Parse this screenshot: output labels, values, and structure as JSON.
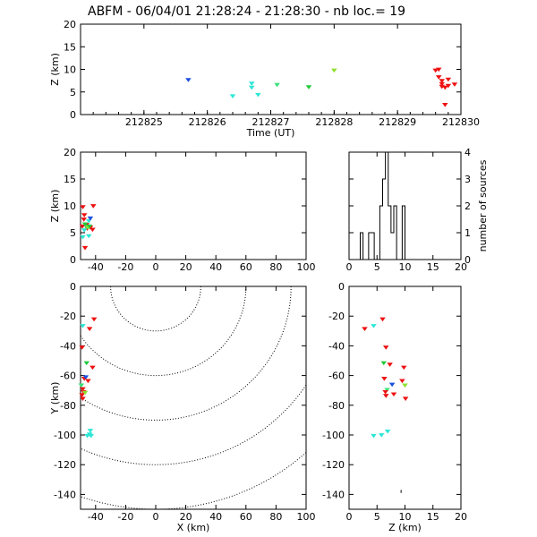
{
  "title": "ABFM - 06/04/01 21:28:24 - 21:28:30 - nb loc.=       19",
  "chart_data": [
    {
      "id": "time-height",
      "type": "scatter",
      "xlabel": "Time (UT)",
      "ylabel": "Z (km)",
      "xlim": [
        212824,
        212830
      ],
      "ylim": [
        0,
        20
      ],
      "xticks": [
        "212825",
        "212826",
        "212827",
        "212828",
        "212829",
        "212830"
      ],
      "yticks": [
        "0",
        "5",
        "10",
        "15",
        "20"
      ],
      "points": [
        {
          "x": 212825.7,
          "y": 7.7,
          "color": "#1b4fe0"
        },
        {
          "x": 212826.4,
          "y": 4.1,
          "color": "#2ee6d6"
        },
        {
          "x": 212826.7,
          "y": 6.9,
          "color": "#2ee6d6"
        },
        {
          "x": 212826.7,
          "y": 6.0,
          "color": "#2ee6d6"
        },
        {
          "x": 212826.8,
          "y": 4.4,
          "color": "#2ee6d6"
        },
        {
          "x": 212827.1,
          "y": 6.6,
          "color": "#3ce07a"
        },
        {
          "x": 212827.6,
          "y": 6.1,
          "color": "#22c93a"
        },
        {
          "x": 212828.0,
          "y": 9.8,
          "color": "#8fe030"
        },
        {
          "x": 212829.6,
          "y": 9.8,
          "color": "#ee1111"
        },
        {
          "x": 212829.65,
          "y": 10.0,
          "color": "#ee1111"
        },
        {
          "x": 212829.65,
          "y": 8.3,
          "color": "#ee1111"
        },
        {
          "x": 212829.7,
          "y": 7.5,
          "color": "#ee1111"
        },
        {
          "x": 212829.7,
          "y": 6.8,
          "color": "#ee1111"
        },
        {
          "x": 212829.7,
          "y": 6.2,
          "color": "#ee1111"
        },
        {
          "x": 212829.75,
          "y": 6.0,
          "color": "#ee1111"
        },
        {
          "x": 212829.8,
          "y": 7.8,
          "color": "#ee1111"
        },
        {
          "x": 212829.8,
          "y": 6.4,
          "color": "#ee1111"
        },
        {
          "x": 212829.9,
          "y": 6.7,
          "color": "#ee1111"
        },
        {
          "x": 212829.75,
          "y": 2.2,
          "color": "#ee1111"
        }
      ]
    },
    {
      "id": "x-z",
      "type": "scatter",
      "xlabel": "",
      "ylabel": "Z (km)",
      "xlim": [
        -50,
        100
      ],
      "ylim": [
        0,
        20
      ],
      "xticks": [
        "-40",
        "-20",
        "0",
        "20",
        "40",
        "60",
        "80",
        "100"
      ],
      "yticks": [
        "0",
        "5",
        "10",
        "15",
        "20"
      ],
      "points": [
        {
          "x": -48.5,
          "y": 9.8,
          "color": "#ee1111"
        },
        {
          "x": -47.5,
          "y": 8.3,
          "color": "#ee1111"
        },
        {
          "x": -47.8,
          "y": 7.5,
          "color": "#ee1111"
        },
        {
          "x": -48.8,
          "y": 6.2,
          "color": "#ee1111"
        },
        {
          "x": -46.0,
          "y": 6.5,
          "color": "#ee1111"
        },
        {
          "x": -45.5,
          "y": 5.8,
          "color": "#ee1111"
        },
        {
          "x": -43.5,
          "y": 6.0,
          "color": "#ee1111"
        },
        {
          "x": -42.0,
          "y": 5.6,
          "color": "#ee1111"
        },
        {
          "x": -47.0,
          "y": 2.2,
          "color": "#ee1111"
        },
        {
          "x": -41.5,
          "y": 10.0,
          "color": "#ee1111"
        },
        {
          "x": -44.5,
          "y": 7.2,
          "color": "#2ee6d6"
        },
        {
          "x": -47.5,
          "y": 5.5,
          "color": "#2ee6d6"
        },
        {
          "x": -48.5,
          "y": 4.2,
          "color": "#2ee6d6"
        },
        {
          "x": -44.5,
          "y": 4.4,
          "color": "#2ee6d6"
        },
        {
          "x": -46.0,
          "y": 6.1,
          "color": "#3ce07a"
        },
        {
          "x": -47.0,
          "y": 6.6,
          "color": "#22c93a"
        },
        {
          "x": -45.0,
          "y": 6.0,
          "color": "#8fe030"
        },
        {
          "x": -44.0,
          "y": 6.2,
          "color": "#22c93a"
        },
        {
          "x": -43.5,
          "y": 7.7,
          "color": "#1b4fe0"
        }
      ]
    },
    {
      "id": "histogram",
      "type": "bar",
      "ylabel": "number of sources",
      "xlim": [
        0,
        20
      ],
      "ylim": [
        0,
        4
      ],
      "xticks": [
        "0",
        "5",
        "10",
        "15",
        "20"
      ],
      "yticks": [
        "0",
        "1",
        "2",
        "3",
        "4"
      ],
      "bin_width": 0.5,
      "bins": [
        {
          "x": 2.0,
          "count": 1
        },
        {
          "x": 2.5,
          "count": 0
        },
        {
          "x": 3.0,
          "count": 0
        },
        {
          "x": 3.5,
          "count": 1
        },
        {
          "x": 4.0,
          "count": 1
        },
        {
          "x": 4.5,
          "count": 0
        },
        {
          "x": 5.0,
          "count": 0
        },
        {
          "x": 5.5,
          "count": 2
        },
        {
          "x": 6.0,
          "count": 3
        },
        {
          "x": 6.5,
          "count": 4
        },
        {
          "x": 7.0,
          "count": 2
        },
        {
          "x": 7.5,
          "count": 1
        },
        {
          "x": 8.0,
          "count": 2
        },
        {
          "x": 8.5,
          "count": 0
        },
        {
          "x": 9.0,
          "count": 0
        },
        {
          "x": 9.5,
          "count": 2
        },
        {
          "x": 10.0,
          "count": 0
        }
      ]
    },
    {
      "id": "x-y",
      "type": "scatter",
      "xlabel": "X (km)",
      "ylabel": "Y (km)",
      "xlim": [
        -50,
        100
      ],
      "ylim": [
        -150,
        0
      ],
      "xticks": [
        "-40",
        "-20",
        "0",
        "20",
        "40",
        "60",
        "80",
        "100"
      ],
      "yticks": [
        "-140",
        "-120",
        "-100",
        "-80",
        "-60",
        "-40",
        "-20",
        "0"
      ],
      "contour_center": [
        0,
        0
      ],
      "contour_radii": [
        30,
        60,
        90,
        120,
        150
      ],
      "points": [
        {
          "x": -48.5,
          "y": -26.5,
          "color": "#2ee6d6"
        },
        {
          "x": -41.0,
          "y": -22.0,
          "color": "#ee1111"
        },
        {
          "x": -44.0,
          "y": -28.5,
          "color": "#ee1111"
        },
        {
          "x": -49.0,
          "y": -41.0,
          "color": "#ee1111"
        },
        {
          "x": -46.0,
          "y": -51.5,
          "color": "#22c93a"
        },
        {
          "x": -42.0,
          "y": -54.5,
          "color": "#ee1111"
        },
        {
          "x": -47.5,
          "y": -62.0,
          "color": "#ee1111"
        },
        {
          "x": -45.0,
          "y": -63.5,
          "color": "#ee1111"
        },
        {
          "x": -49.5,
          "y": -66.5,
          "color": "#3ce07a"
        },
        {
          "x": -48.5,
          "y": -69.0,
          "color": "#ee1111"
        },
        {
          "x": -48.0,
          "y": -71.0,
          "color": "#ee1111"
        },
        {
          "x": -49.0,
          "y": -73.0,
          "color": "#ee1111"
        },
        {
          "x": -48.5,
          "y": -75.5,
          "color": "#ee1111"
        },
        {
          "x": -46.5,
          "y": -61.0,
          "color": "#1b4fe0"
        },
        {
          "x": -47.0,
          "y": -71.5,
          "color": "#8fe030"
        },
        {
          "x": -43.5,
          "y": -97.0,
          "color": "#2ee6d6"
        },
        {
          "x": -44.0,
          "y": -99.5,
          "color": "#2ee6d6"
        },
        {
          "x": -45.5,
          "y": -100.5,
          "color": "#2ee6d6"
        },
        {
          "x": -43.0,
          "y": -100.5,
          "color": "#2ee6d6"
        }
      ]
    },
    {
      "id": "z-y",
      "type": "scatter",
      "xlabel": "Z (km)",
      "ylabel": "",
      "xlim": [
        0,
        20
      ],
      "ylim": [
        -150,
        0
      ],
      "xticks": [
        "0",
        "5",
        "10",
        "15",
        "20"
      ],
      "yticks": [
        "-140",
        "-120",
        "-100",
        "-80",
        "-60",
        "-40",
        "-20",
        "0"
      ],
      "points": [
        {
          "x": 4.4,
          "y": -26.5,
          "color": "#2ee6d6"
        },
        {
          "x": 6.0,
          "y": -22.0,
          "color": "#ee1111"
        },
        {
          "x": 2.8,
          "y": -28.5,
          "color": "#ee1111"
        },
        {
          "x": 6.6,
          "y": -41.0,
          "color": "#ee1111"
        },
        {
          "x": 6.2,
          "y": -51.5,
          "color": "#22c93a"
        },
        {
          "x": 7.3,
          "y": -52.5,
          "color": "#ee1111"
        },
        {
          "x": 9.8,
          "y": -54.5,
          "color": "#ee1111"
        },
        {
          "x": 6.3,
          "y": -62.0,
          "color": "#ee1111"
        },
        {
          "x": 9.5,
          "y": -63.5,
          "color": "#ee1111"
        },
        {
          "x": 7.7,
          "y": -66.0,
          "color": "#1b4fe0"
        },
        {
          "x": 10.0,
          "y": -66.5,
          "color": "#8fe030"
        },
        {
          "x": 6.8,
          "y": -69.5,
          "color": "#3ce07a"
        },
        {
          "x": 6.5,
          "y": -71.0,
          "color": "#ee1111"
        },
        {
          "x": 8.0,
          "y": -72.5,
          "color": "#ee1111"
        },
        {
          "x": 6.6,
          "y": -73.5,
          "color": "#ee1111"
        },
        {
          "x": 10.1,
          "y": -75.5,
          "color": "#ee1111"
        },
        {
          "x": 4.4,
          "y": -100.5,
          "color": "#2ee6d6"
        },
        {
          "x": 5.8,
          "y": -100.0,
          "color": "#2ee6d6"
        },
        {
          "x": 6.9,
          "y": -97.5,
          "color": "#2ee6d6"
        }
      ]
    }
  ]
}
